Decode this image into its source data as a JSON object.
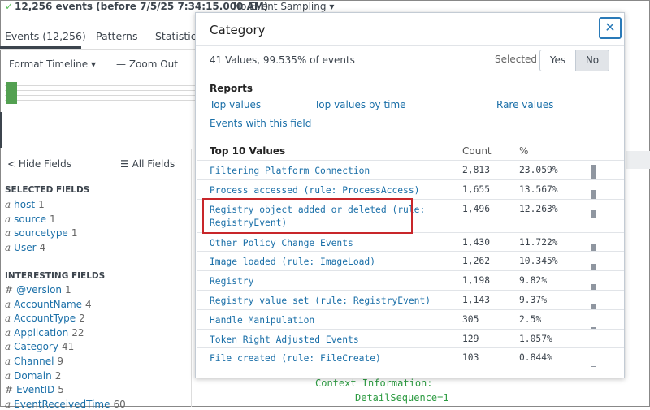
{
  "header": {
    "status": "12,256 events (before 7/5/25 7:34:15.000 AM)",
    "sampling": "No Event Sampling"
  },
  "tabs": [
    "Events (12,256)",
    "Patterns",
    "Statistics"
  ],
  "timeline": {
    "format": "Format Timeline",
    "zoom": "Zoom Out"
  },
  "sidebar": {
    "hide": "Hide Fields",
    "all": "All Fields",
    "selected_title": "SELECTED FIELDS",
    "selected": [
      {
        "type": "a",
        "name": "host",
        "count": 1
      },
      {
        "type": "a",
        "name": "source",
        "count": 1
      },
      {
        "type": "a",
        "name": "sourcetype",
        "count": 1
      },
      {
        "type": "a",
        "name": "User",
        "count": 4
      }
    ],
    "interesting_title": "INTERESTING FIELDS",
    "interesting": [
      {
        "type": "#",
        "name": "@version",
        "count": 1
      },
      {
        "type": "a",
        "name": "AccountName",
        "count": 4
      },
      {
        "type": "a",
        "name": "AccountType",
        "count": 2
      },
      {
        "type": "a",
        "name": "Application",
        "count": 22
      },
      {
        "type": "a",
        "name": "Category",
        "count": 41
      },
      {
        "type": "a",
        "name": "Channel",
        "count": 9
      },
      {
        "type": "a",
        "name": "Domain",
        "count": 2
      },
      {
        "type": "#",
        "name": "EventID",
        "count": 5
      },
      {
        "type": "a",
        "name": "EventReceivedTime",
        "count": 60
      }
    ]
  },
  "popup": {
    "title": "Category",
    "summary": "41 Values, 99.535% of events",
    "selected_label": "Selected",
    "yes": "Yes",
    "no": "No",
    "reports_title": "Reports",
    "reports": [
      "Top values",
      "Top values by time",
      "Rare values",
      "Events with this field"
    ],
    "table": {
      "headers": [
        "Top 10 Values",
        "Count",
        "%"
      ],
      "rows": [
        {
          "value": "Filtering Platform Connection",
          "count": "2,813",
          "percent": "23.059%"
        },
        {
          "value": "Process accessed (rule: ProcessAccess)",
          "count": "1,655",
          "percent": "13.567%"
        },
        {
          "value": "Registry object added or deleted (rule: RegistryEvent)",
          "count": "1,496",
          "percent": "12.263%"
        },
        {
          "value": "Other Policy Change Events",
          "count": "1,430",
          "percent": "11.722%"
        },
        {
          "value": "Image loaded (rule: ImageLoad)",
          "count": "1,262",
          "percent": "10.345%"
        },
        {
          "value": "Registry",
          "count": "1,198",
          "percent": "9.82%"
        },
        {
          "value": "Registry value set (rule: RegistryEvent)",
          "count": "1,143",
          "percent": "9.37%"
        },
        {
          "value": "Handle Manipulation",
          "count": "305",
          "percent": "2.5%"
        },
        {
          "value": "Token Right Adjusted Events",
          "count": "129",
          "percent": "1.057%"
        },
        {
          "value": "File created (rule: FileCreate)",
          "count": "103",
          "percent": "0.844%"
        }
      ]
    }
  },
  "events": [
    "Context Information:",
    "DetailSequence=1"
  ]
}
